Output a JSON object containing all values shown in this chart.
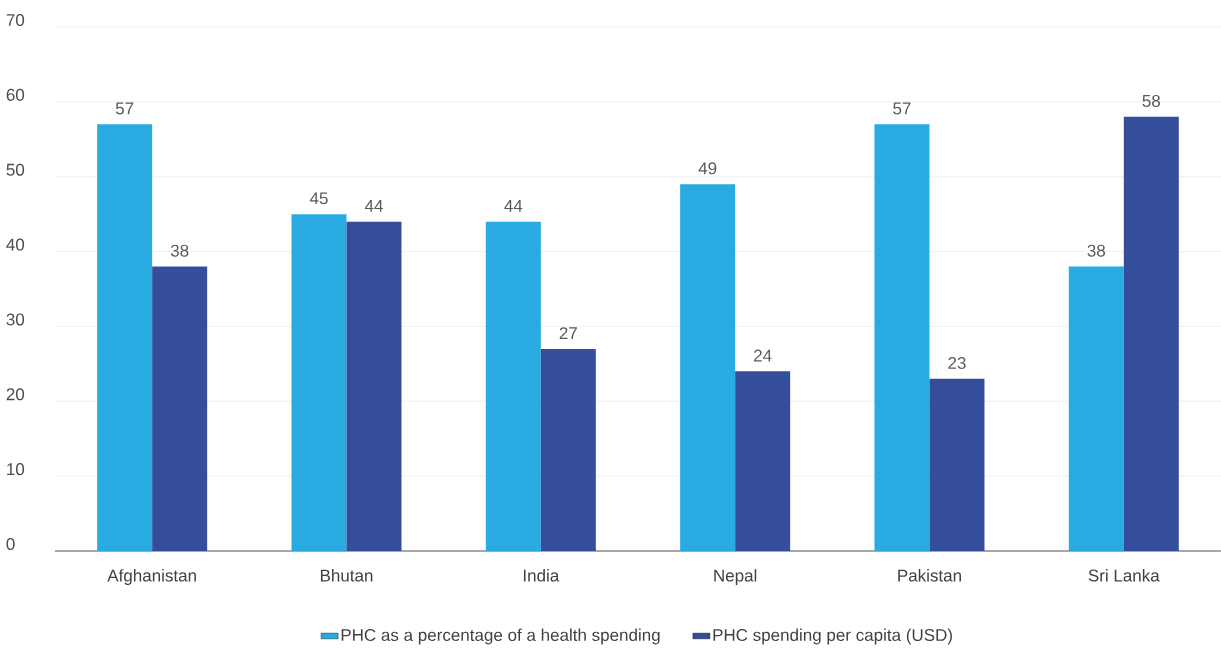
{
  "chart_data": {
    "type": "bar",
    "categories": [
      "Afghanistan",
      "Bhutan",
      "India",
      "Nepal",
      "Pakistan",
      "Sri Lanka"
    ],
    "series": [
      {
        "name": "PHC as a percentage of a health spending",
        "color": "#29abe2",
        "values": [
          57,
          45,
          44,
          49,
          57,
          38
        ]
      },
      {
        "name": "PHC spending per capita (USD)",
        "color": "#354e9c",
        "values": [
          38,
          44,
          27,
          24,
          23,
          58
        ]
      }
    ],
    "ylim": [
      0,
      70
    ],
    "yticks": [
      0,
      10,
      20,
      30,
      40,
      50,
      60,
      70
    ],
    "grid": "y",
    "legend": "bottom",
    "data_labels": true
  }
}
